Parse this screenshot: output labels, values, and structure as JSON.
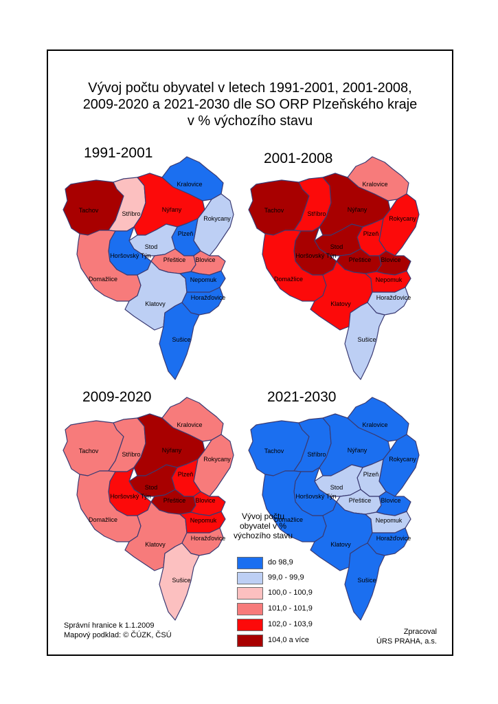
{
  "title": {
    "line1": "Vývoj počtu obyvatel v letech 1991-2001, 2001-2008,",
    "line2": "2009-2020 a 2021-2030 dle SO ORP Plzeňského kraje",
    "line3": "v % výchozího stavu"
  },
  "region_names": [
    "Tachov",
    "Stříbro",
    "Nýřany",
    "Kralovice",
    "Rokycany",
    "Plzeň",
    "Stod",
    "Horšovský Týn",
    "Přeštice",
    "Blovice",
    "Domažlice",
    "Klatovy",
    "Nepomuk",
    "Horažďovice",
    "Sušice"
  ],
  "maps": [
    {
      "period": "1991-2001",
      "classes": {
        "Tachov": 5,
        "Stříbro": 2,
        "Nýřany": 4,
        "Kralovice": 0,
        "Rokycany": 1,
        "Plzeň": 0,
        "Stod": 1,
        "Horšovský Týn": 0,
        "Přeštice": 3,
        "Blovice": 3,
        "Domažlice": 3,
        "Klatovy": 1,
        "Nepomuk": 0,
        "Horažďovice": 0,
        "Sušice": 0
      }
    },
    {
      "period": "2001-2008",
      "classes": {
        "Tachov": 5,
        "Stříbro": 4,
        "Nýřany": 5,
        "Kralovice": 3,
        "Rokycany": 4,
        "Plzeň": 4,
        "Stod": 5,
        "Horšovský Týn": 5,
        "Přeštice": 5,
        "Blovice": 5,
        "Domažlice": 4,
        "Klatovy": 4,
        "Nepomuk": 4,
        "Horažďovice": 1,
        "Sušice": 1
      }
    },
    {
      "period": "2009-2020",
      "classes": {
        "Tachov": 3,
        "Stříbro": 3,
        "Nýřany": 5,
        "Kralovice": 3,
        "Rokycany": 3,
        "Plzeň": 4,
        "Stod": 5,
        "Horšovský Týn": 4,
        "Přeštice": 5,
        "Blovice": 4,
        "Domažlice": 3,
        "Klatovy": 3,
        "Nepomuk": 4,
        "Horažďovice": 3,
        "Sušice": 2
      }
    },
    {
      "period": "2021-2030",
      "classes": {
        "Tachov": 0,
        "Stříbro": 0,
        "Nýřany": 0,
        "Kralovice": 0,
        "Rokycany": 0,
        "Plzeň": 1,
        "Stod": 1,
        "Horšovský Týn": 0,
        "Přeštice": 1,
        "Blovice": 0,
        "Domažlice": 0,
        "Klatovy": 0,
        "Nepomuk": 1,
        "Horažďovice": 0,
        "Sušice": 0
      }
    }
  ],
  "legend": {
    "title": "Vývoj počtu obyvatel v % výchozího stavu",
    "items": [
      {
        "label": "do  98,9",
        "color": "#1b6ff0"
      },
      {
        "label": "99,0 - 99,9",
        "color": "#bdcff4"
      },
      {
        "label": "100,0 - 100,9",
        "color": "#fcc0c0"
      },
      {
        "label": "101,0 - 101,9",
        "color": "#f77b7b"
      },
      {
        "label": "102,0 - 103,9",
        "color": "#fc0a0a"
      },
      {
        "label": "104,0 a více",
        "color": "#a80000"
      }
    ]
  },
  "boundary_color": "#3a3a72",
  "footer": {
    "admin_note": "Správní hranice k 1.1.2009",
    "basemap_note": "Mapový podklad: © ČÚZK, ČSÚ",
    "processed_by": "Zpracoval",
    "organization": "ÚRS PRAHA, a.s."
  }
}
